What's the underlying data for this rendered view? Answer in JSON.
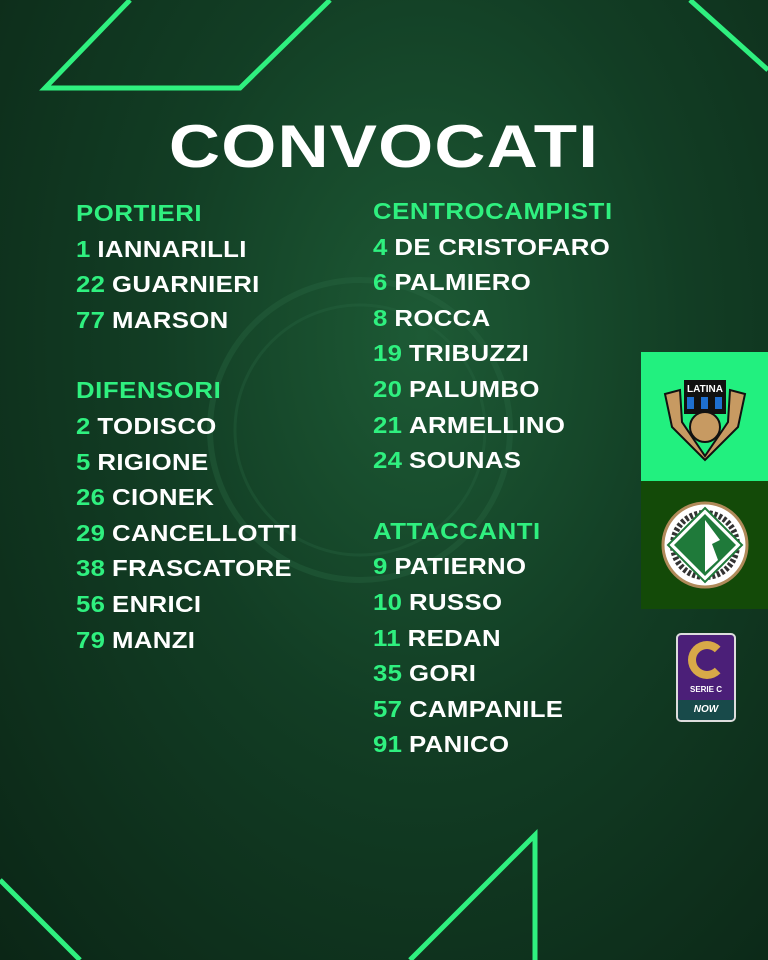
{
  "title": "CONVOCATI",
  "left": [
    {
      "header": "PORTIERI",
      "players": [
        {
          "n": "1",
          "name": "IANNARILLI"
        },
        {
          "n": "22",
          "name": "GUARNIERI"
        },
        {
          "n": "77",
          "name": "MARSON"
        }
      ]
    },
    {
      "header": "DIFENSORI",
      "players": [
        {
          "n": "2",
          "name": "TODISCO"
        },
        {
          "n": "5",
          "name": "RIGIONE"
        },
        {
          "n": "26",
          "name": "CIONEK"
        },
        {
          "n": "29",
          "name": "CANCELLOTTI"
        },
        {
          "n": "38",
          "name": "FRASCATORE"
        },
        {
          "n": "56",
          "name": "ENRICI"
        },
        {
          "n": "79",
          "name": "MANZI"
        }
      ]
    }
  ],
  "right": [
    {
      "header": "CENTROCAMPISTI",
      "players": [
        {
          "n": "4",
          "name": "DE CRISTOFARO"
        },
        {
          "n": "6",
          "name": "PALMIERO"
        },
        {
          "n": "8",
          "name": "ROCCA"
        },
        {
          "n": "19",
          "name": "TRIBUZZI"
        },
        {
          "n": "20",
          "name": "PALUMBO"
        },
        {
          "n": "21",
          "name": "ARMELLINO"
        },
        {
          "n": "24",
          "name": "SOUNAS"
        }
      ]
    },
    {
      "header": "ATTACCANTI",
      "players": [
        {
          "n": "9",
          "name": "PATIERNO"
        },
        {
          "n": "10",
          "name": "RUSSO"
        },
        {
          "n": "11",
          "name": "REDAN"
        },
        {
          "n": "35",
          "name": "GORI"
        },
        {
          "n": "57",
          "name": "CAMPANILE"
        },
        {
          "n": "91",
          "name": "PANICO"
        }
      ]
    }
  ],
  "logos": {
    "home": "LATINA",
    "competition": "SERIE C",
    "sponsor": "NOW"
  },
  "colors": {
    "accent": "#2ff07f",
    "home_box": "#22f07f",
    "away_box": "#134a08",
    "background": "#123d24"
  }
}
